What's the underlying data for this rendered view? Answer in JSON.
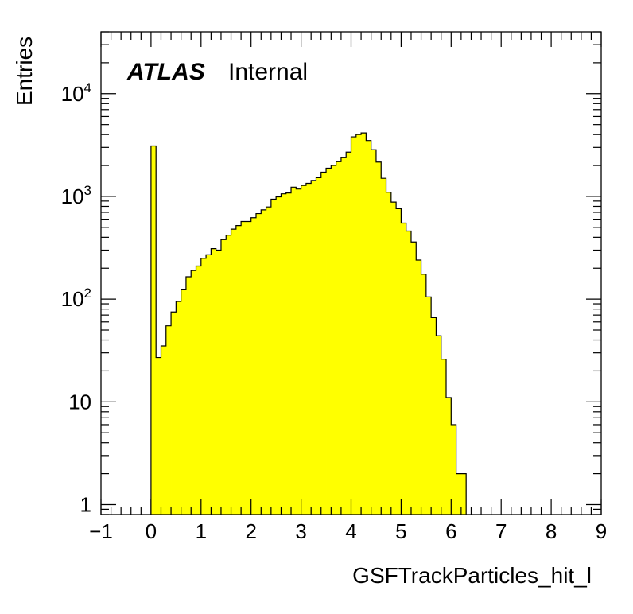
{
  "chart_data": {
    "type": "bar",
    "title": "",
    "xlabel": "GSFTrackParticles_hit_l",
    "ylabel": "Entries",
    "yscale": "log",
    "xlim": [
      -1,
      9
    ],
    "ylim": [
      0.8,
      40000
    ],
    "grid": false,
    "colors": {
      "fill": "#ffff00",
      "stroke": "#000000",
      "axis": "#000000"
    },
    "label": {
      "experiment": "ATLAS",
      "status": "Internal"
    },
    "x_ticks": [
      "−1",
      "0",
      "1",
      "2",
      "3",
      "4",
      "5",
      "6",
      "7",
      "8",
      "9"
    ],
    "y_ticks": [
      {
        "value": 1,
        "label": "1",
        "sup": ""
      },
      {
        "value": 10,
        "label": "10",
        "sup": ""
      },
      {
        "value": 100,
        "label": "10",
        "sup": "2"
      },
      {
        "value": 1000,
        "label": "10",
        "sup": "3"
      },
      {
        "value": 10000,
        "label": "10",
        "sup": "4"
      }
    ],
    "bin_edges_start": 0,
    "bin_width": 0.1,
    "values": [
      3100,
      27,
      35,
      55,
      75,
      95,
      125,
      165,
      190,
      210,
      250,
      270,
      310,
      300,
      380,
      420,
      480,
      520,
      570,
      570,
      620,
      680,
      740,
      790,
      940,
      990,
      1060,
      1080,
      1230,
      1180,
      1280,
      1340,
      1430,
      1520,
      1720,
      1880,
      2000,
      2180,
      2380,
      2700,
      3800,
      4000,
      4150,
      3500,
      2850,
      2160,
      1500,
      1100,
      880,
      760,
      550,
      460,
      360,
      240,
      175,
      105,
      66,
      44,
      26,
      11,
      6,
      2,
      2
    ]
  }
}
